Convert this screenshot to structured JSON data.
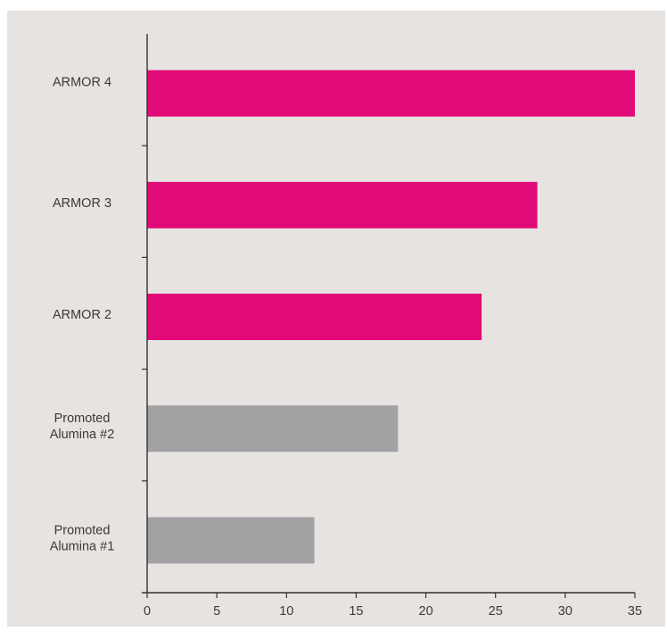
{
  "chart_data": {
    "type": "bar",
    "orientation": "horizontal",
    "categories": [
      "ARMOR 4",
      "ARMOR 3",
      "ARMOR 2",
      "Promoted Alumina #2",
      "Promoted Alumina #1"
    ],
    "category_label_lines": [
      [
        "ARMOR 4"
      ],
      [
        "ARMOR 3"
      ],
      [
        "ARMOR 2"
      ],
      [
        "Promoted",
        "Alumina #2"
      ],
      [
        "Promoted",
        "Alumina #1"
      ]
    ],
    "values": [
      35,
      28,
      24,
      18,
      12
    ],
    "bar_colors": [
      "#e20a76",
      "#e20a76",
      "#e20a76",
      "#a2a1a4",
      "#a2a1a4"
    ],
    "xlim": [
      0,
      35
    ],
    "xticks": [
      0,
      5,
      10,
      15,
      20,
      25,
      30,
      35
    ],
    "grid": false,
    "title": "",
    "xlabel": "",
    "ylabel": ""
  },
  "colors": {
    "background_panel": "#e6e3e1",
    "armor_bar": "#e20a76",
    "alumina_bar": "#a2a1a4",
    "axis": "#333333",
    "text": "#3a3a3a"
  }
}
